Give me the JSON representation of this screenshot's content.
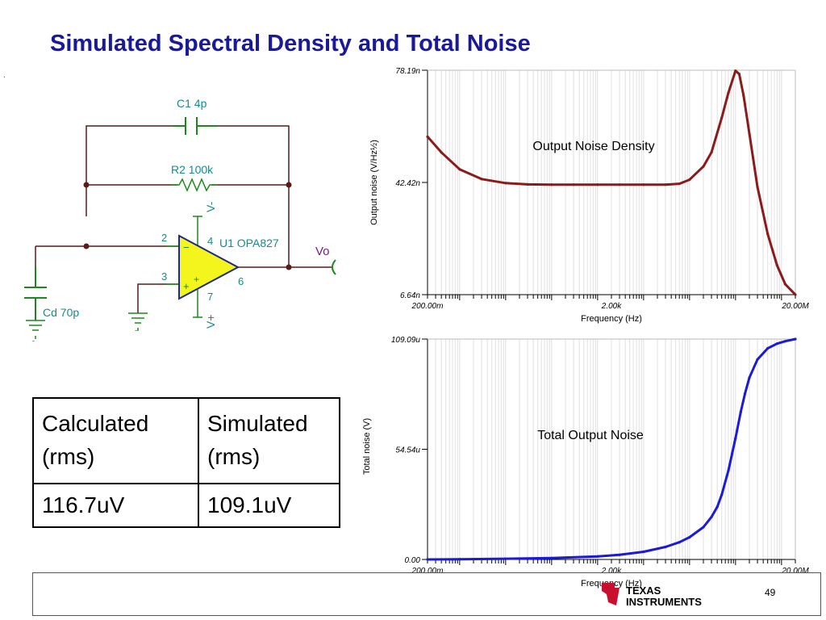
{
  "title": "Simulated Spectral Density and Total Noise",
  "page_dot": ".",
  "schematic": {
    "c1": "C1 4p",
    "r2": "R2 100k",
    "cd": "Cd 70p",
    "u1": "U1 OPA827",
    "vo": "Vo",
    "v_minus": "V-",
    "v_plus": "V+",
    "pin2": "2",
    "pin3": "3",
    "pin4": "4",
    "pin6": "6",
    "pin7": "7",
    "minus_sign": "−",
    "plus_sign": "+"
  },
  "table": {
    "headers": [
      "Calculated\n(rms)",
      "Simulated\n(rms)"
    ],
    "values": [
      "116.7uV",
      "109.1uV"
    ]
  },
  "footer": {
    "page_number": "49",
    "logo_text_1": "TEXAS",
    "logo_text_2": "INSTRUMENTS"
  },
  "chart_data": [
    {
      "type": "line",
      "annotation": "Output Noise Density",
      "xlabel": "Frequency (Hz)",
      "ylabel": "Output noise (V/Hz½)",
      "x_scale": "log",
      "xlim": [
        0.2,
        20000000
      ],
      "ylim": [
        6.64e-09,
        7.819e-08
      ],
      "x_ticks": [
        "200.00m",
        "2.00k",
        "20.00M"
      ],
      "y_ticks": [
        "78.19n",
        "42.42n",
        "6.64n"
      ],
      "color": "#8b1a1a",
      "x": [
        0.2,
        0.4,
        1,
        3,
        10,
        30,
        100,
        300,
        1000,
        3000,
        10000,
        30000,
        60000,
        100000,
        200000,
        300000,
        500000,
        700000,
        1000000,
        1200000,
        1500000,
        2000000,
        3000000,
        5000000,
        8000000,
        12000000,
        20000000
      ],
      "y": [
        5.7e-08,
        5.2e-08,
        4.66e-08,
        4.35e-08,
        4.22e-08,
        4.18e-08,
        4.17e-08,
        4.17e-08,
        4.17e-08,
        4.17e-08,
        4.17e-08,
        4.17e-08,
        4.2e-08,
        4.33e-08,
        4.75e-08,
        5.2e-08,
        6.3e-08,
        7.1e-08,
        7.8e-08,
        7.7e-08,
        7e-08,
        5.8e-08,
        4.1e-08,
        2.6e-08,
        1.6e-08,
        1e-08,
        6.64e-09
      ]
    },
    {
      "type": "line",
      "annotation": "Total Output Noise",
      "xlabel": "Frequency (Hz)",
      "ylabel": "Total noise (V)",
      "x_scale": "log",
      "xlim": [
        0.2,
        20000000
      ],
      "ylim": [
        0,
        0.00010909
      ],
      "x_ticks": [
        "200.00m",
        "2.00k",
        "20.00M"
      ],
      "y_ticks": [
        "109.09u",
        "54.54u",
        "0.00"
      ],
      "color": "#1a1ad8",
      "x": [
        0.2,
        1,
        10,
        100,
        1000,
        3000,
        10000,
        30000,
        60000,
        100000,
        200000,
        300000,
        400000,
        500000,
        700000,
        1000000,
        1300000,
        1600000,
        2000000,
        3000000,
        5000000,
        8000000,
        12000000,
        20000000
      ],
      "y": [
        0,
        1e-07,
        3.5e-07,
        7e-07,
        1.5e-06,
        2.3e-06,
        3.8e-06,
        6.2e-06,
        8.5e-06,
        1.1e-05,
        1.6e-05,
        2.1e-05,
        2.6e-05,
        3.2e-05,
        4.4e-05,
        6e-05,
        7.3e-05,
        8.2e-05,
        9e-05,
        9.9e-05,
        0.0001045,
        0.0001068,
        0.000108,
        0.00010909
      ]
    }
  ]
}
